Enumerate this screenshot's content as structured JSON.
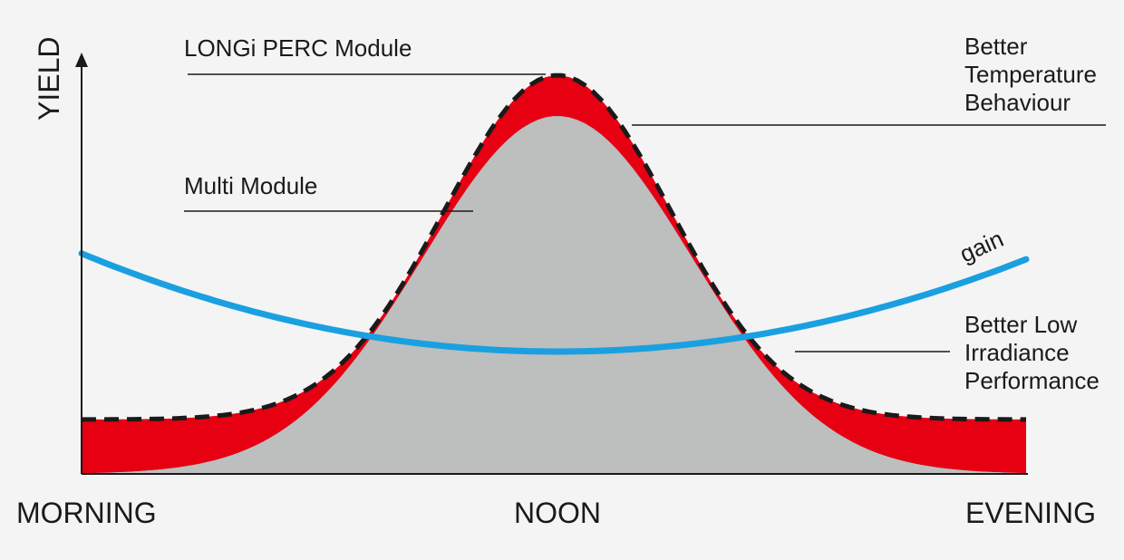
{
  "y_axis_label": "YIELD",
  "x_labels": {
    "start": "MORNING",
    "middle": "NOON",
    "end": "EVENING"
  },
  "labels": {
    "longi_perc": "LONGi PERC Module",
    "multi_module": "Multi Module",
    "gain": "gain",
    "temperature": [
      "Better",
      "Temperature",
      "Behaviour"
    ],
    "low_irradiance": [
      "Better Low",
      "Irradiance",
      "Performance"
    ]
  },
  "colors": {
    "background": "#f4f4f4",
    "multi_module_fill": "#bdbebe",
    "temperature_gain_fill": "#e60012",
    "low_irradiance_gain_fill": "#0a5aa8",
    "low_irradiance_gain_dark": "#0b2a5e",
    "gain_curve": "#1aa0e0",
    "perc_outline": "#1a1a1a",
    "axis": "#1a1a1a"
  }
}
